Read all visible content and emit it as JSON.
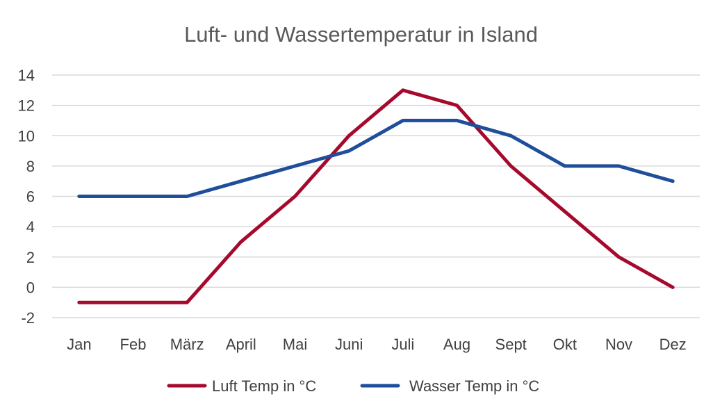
{
  "chart_data": {
    "type": "line",
    "title": "Luft- und Wassertemperatur in Island",
    "xlabel": "",
    "ylabel": "",
    "categories": [
      "Jan",
      "Feb",
      "März",
      "April",
      "Mai",
      "Juni",
      "Juli",
      "Aug",
      "Sept",
      "Okt",
      "Nov",
      "Dez"
    ],
    "ylim": [
      -2,
      14
    ],
    "yticks": [
      -2,
      0,
      2,
      4,
      6,
      8,
      10,
      12,
      14
    ],
    "grid": true,
    "legend_position": "bottom",
    "series": [
      {
        "name": "Luft Temp in °C",
        "color": "#A50A2D",
        "values": [
          -1,
          -1,
          -1,
          3,
          6,
          10,
          13,
          12,
          8,
          5,
          2,
          0
        ]
      },
      {
        "name": "Wasser Temp in °C",
        "color": "#1F4E9A",
        "values": [
          6,
          6,
          6,
          7,
          8,
          9,
          11,
          11,
          10,
          8,
          8,
          7
        ]
      }
    ]
  },
  "colors": {
    "grid": "#D9D9D9",
    "text": "#404040",
    "title": "#595959"
  }
}
